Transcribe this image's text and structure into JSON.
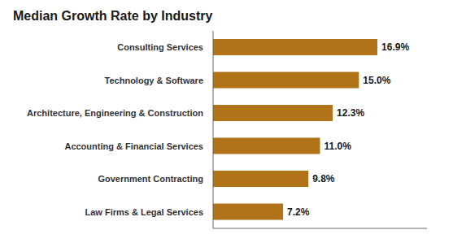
{
  "chart_data": {
    "type": "bar",
    "orientation": "horizontal",
    "title": "Median Growth Rate by Industry",
    "categories": [
      "Law Firms & Legal Services",
      "Government Contracting",
      "Accounting & Financial Services",
      "Architecture, Engineering & Construction",
      "Technology & Software",
      "Consulting Services"
    ],
    "values": [
      7.2,
      9.8,
      11.0,
      12.3,
      15.0,
      16.9
    ],
    "value_labels": [
      "7.2%",
      "9.8%",
      "11.0%",
      "12.3%",
      "15.0%",
      "16.9%"
    ],
    "data_labels": true,
    "color": "#B07318",
    "xlim": [
      0,
      22
    ],
    "xticks": [],
    "tick_labels": "y",
    "grid": false
  }
}
